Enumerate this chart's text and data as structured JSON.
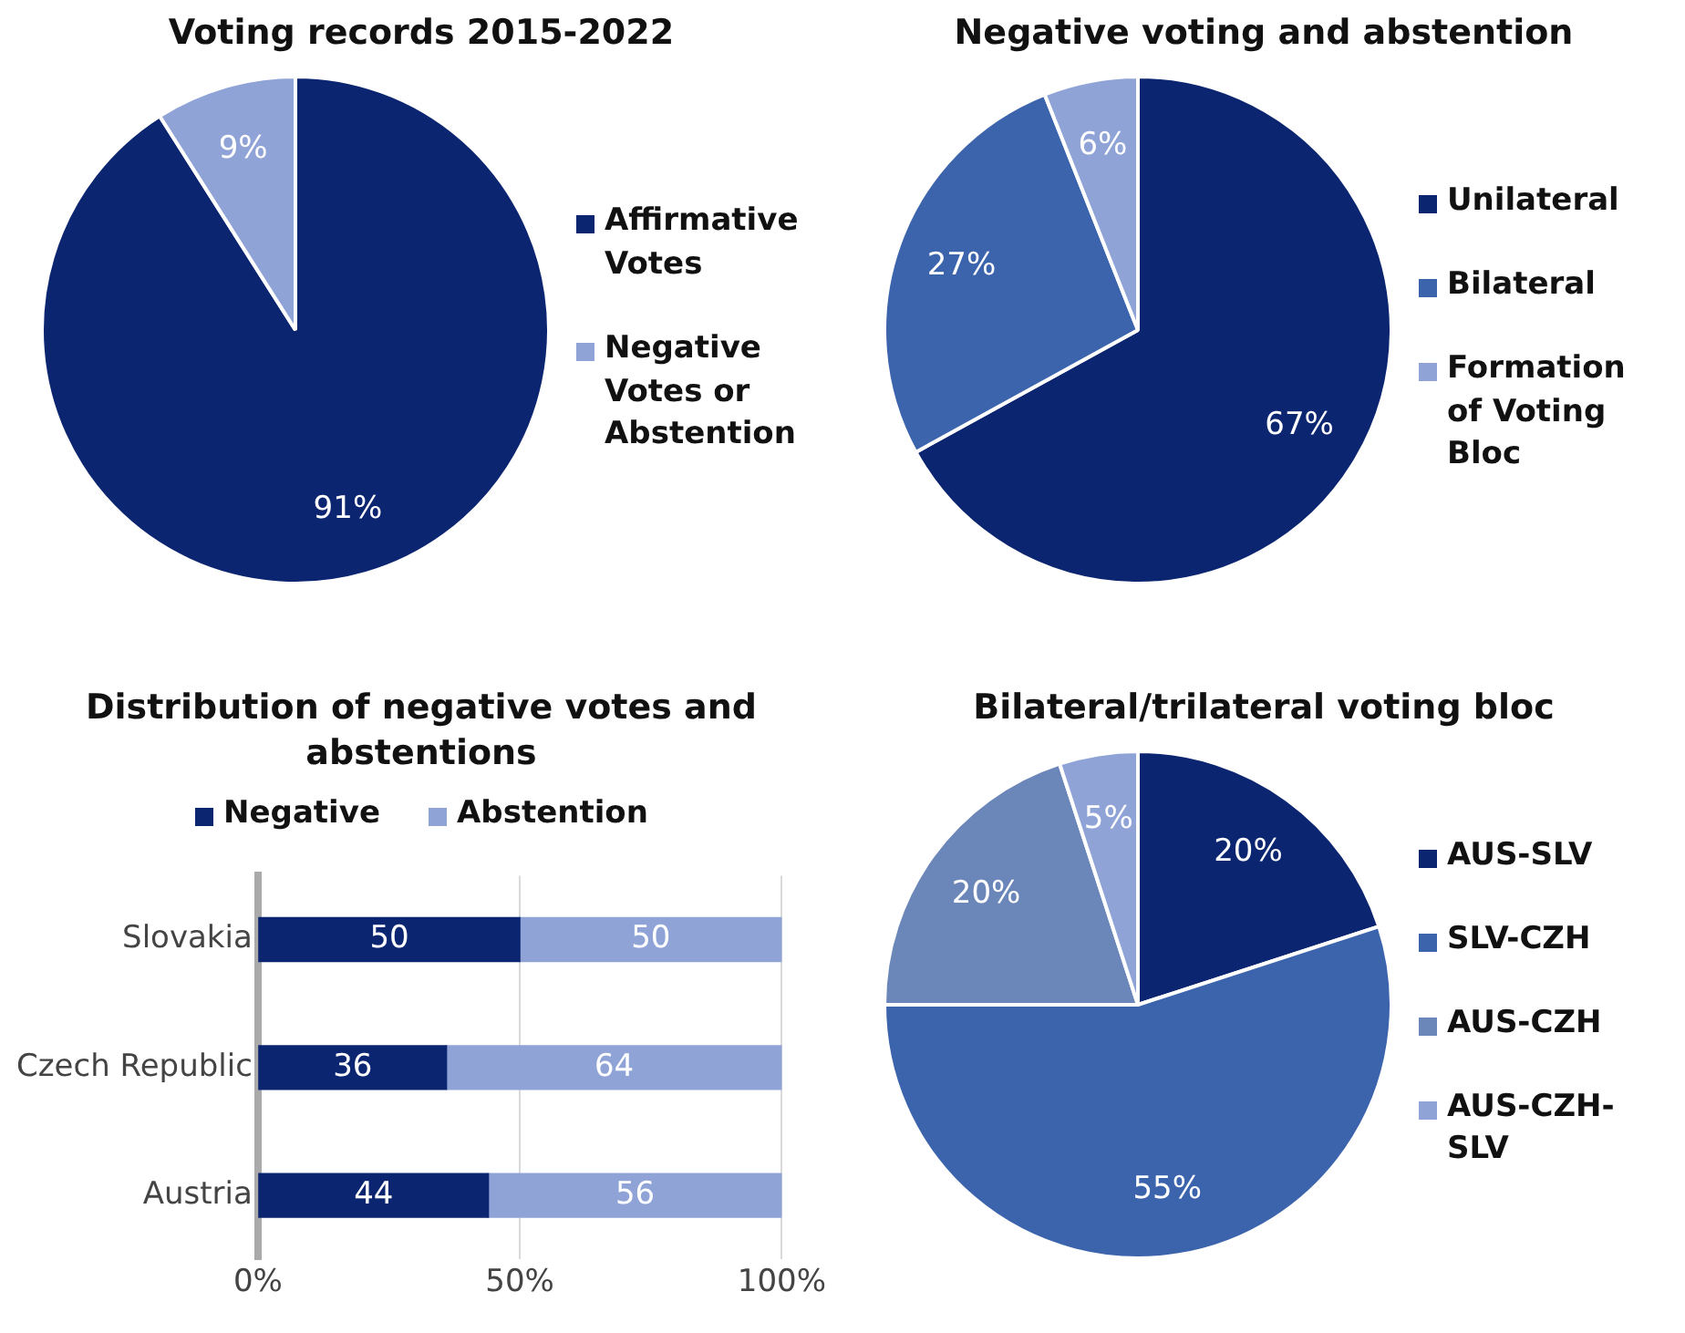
{
  "chart_data": [
    {
      "type": "pie",
      "title": "Voting records 2015-2022",
      "categories": [
        "Affirmative Votes",
        "Negative Votes or Abstention"
      ],
      "values": [
        91,
        9
      ],
      "colors": [
        "#0b2570",
        "#8fa3d7"
      ],
      "value_labels": [
        "91%",
        "9%"
      ],
      "legend": "right"
    },
    {
      "type": "pie",
      "title": "Negative voting and abstention",
      "categories": [
        "Unilateral",
        "Bilateral",
        "Formation of Voting Bloc"
      ],
      "values": [
        67,
        27,
        6
      ],
      "colors": [
        "#0b2570",
        "#3c64ad",
        "#8fa3d7"
      ],
      "value_labels": [
        "67%",
        "27%",
        "6%"
      ],
      "legend": "right"
    },
    {
      "type": "bar",
      "title": "Distribution of negative votes and abstentions",
      "orientation": "horizontal",
      "stacked": true,
      "categories": [
        "Slovakia",
        "Czech Republic",
        "Austria"
      ],
      "series": [
        {
          "name": "Negative",
          "color": "#0b2570",
          "values": [
            50,
            36,
            44
          ]
        },
        {
          "name": "Abstention",
          "color": "#8fa3d7",
          "values": [
            50,
            64,
            56
          ]
        }
      ],
      "xlim": [
        0,
        100
      ],
      "xticks": [
        {
          "value": 0,
          "label": "0%"
        },
        {
          "value": 50,
          "label": "50%"
        },
        {
          "value": 100,
          "label": "100%"
        }
      ],
      "grid": "x",
      "legend": "top",
      "data_labels": true
    },
    {
      "type": "pie",
      "title": "Bilateral/trilateral voting bloc",
      "categories": [
        "AUS-SLV",
        "SLV-CZH",
        "AUS-CZH",
        "AUS-CZH-SLV"
      ],
      "values": [
        20,
        55,
        20,
        5
      ],
      "colors": [
        "#0b2570",
        "#3c64ad",
        "#6b86b8",
        "#8fa3d7"
      ],
      "value_labels": [
        "20%",
        "55%",
        "20%",
        "5%"
      ],
      "legend": "right"
    }
  ]
}
